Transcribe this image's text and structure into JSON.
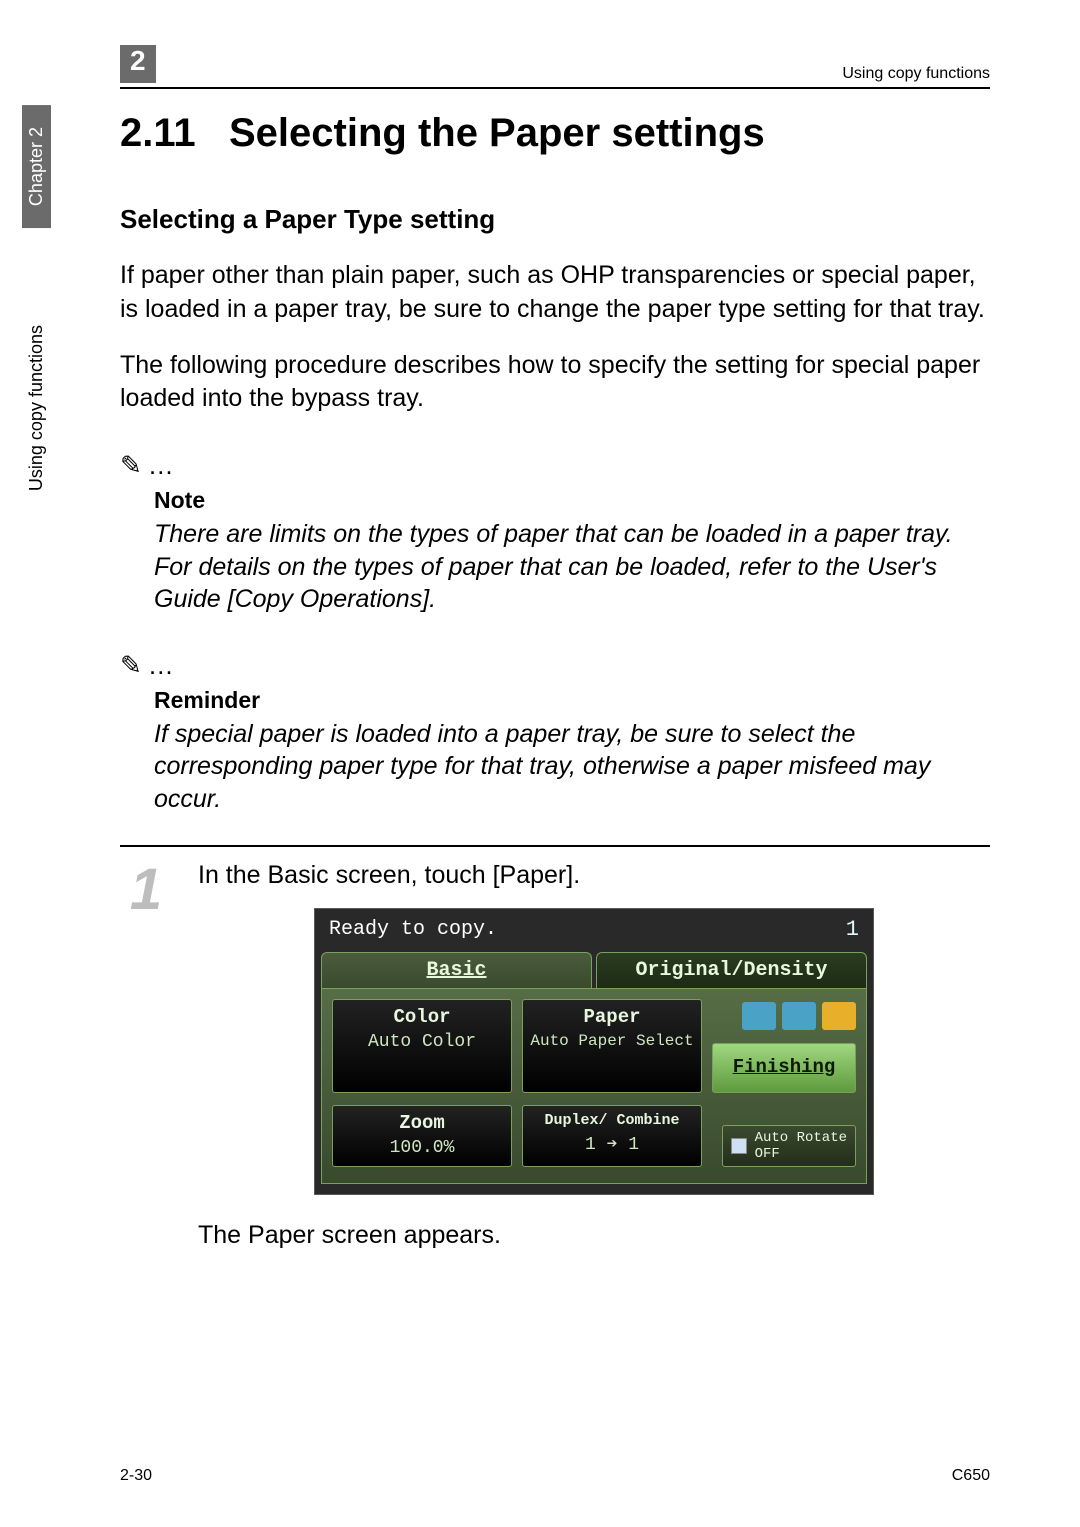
{
  "side_tabs": {
    "chapter": "Chapter 2",
    "section": "Using copy functions"
  },
  "header": {
    "chapter_number": "2",
    "running_head": "Using copy functions"
  },
  "title": {
    "number": "2.11",
    "text": "Selecting the Paper settings"
  },
  "subhead": "Selecting a Paper Type setting",
  "paragraphs": {
    "p1": "If paper other than plain paper, such as OHP transparencies or special paper, is loaded in a paper tray, be sure to change the paper type setting for that tray.",
    "p2": "The following procedure describes how to specify the setting for special paper loaded into the bypass tray."
  },
  "note": {
    "marker_icon": "✎",
    "marker_dots": "…",
    "label": "Note",
    "body": "There are limits on the types of paper that can be loaded in a paper tray. For details on the types of paper that can be loaded, refer to the User's Guide [Copy Operations]."
  },
  "reminder": {
    "marker_icon": "✎",
    "marker_dots": "…",
    "label": "Reminder",
    "body": "If special paper is loaded into a paper tray, be sure to select the corresponding paper type for that tray, otherwise a paper misfeed may occur."
  },
  "step1": {
    "number": "1",
    "text": "In the Basic screen, touch [Paper].",
    "post": "The Paper screen appears."
  },
  "panel": {
    "status_text": "Ready to copy.",
    "count": "1",
    "tabs": {
      "basic": "Basic",
      "orig": "Original/Density"
    },
    "cells": {
      "color": {
        "title": "Color",
        "value": "Auto Color"
      },
      "paper": {
        "title": "Paper",
        "value": "Auto Paper Select"
      },
      "finishing": {
        "title": "Finishing"
      },
      "zoom": {
        "title": "Zoom",
        "value": "100.0%"
      },
      "dup": {
        "title": "Duplex/ Combine",
        "value_left": "1",
        "arrow": "➔",
        "value_right": "1"
      }
    },
    "auto_rotate": {
      "line1": "Auto Rotate",
      "line2": "OFF"
    },
    "icon_colors": {
      "a": "#4aa3c7",
      "b": "#4aa3c7",
      "c": "#e8b02a"
    }
  },
  "footer": {
    "left": "2-30",
    "right": "C650"
  },
  "colors": {
    "tab_bg": "#6b6b6b",
    "step_num": "#bdbdbd",
    "panel_bg": "#292929",
    "panel_body_top": "#566d46",
    "panel_body_bottom": "#394a2d",
    "border_green": "#7aa060",
    "light_text": "#e8f6df"
  }
}
